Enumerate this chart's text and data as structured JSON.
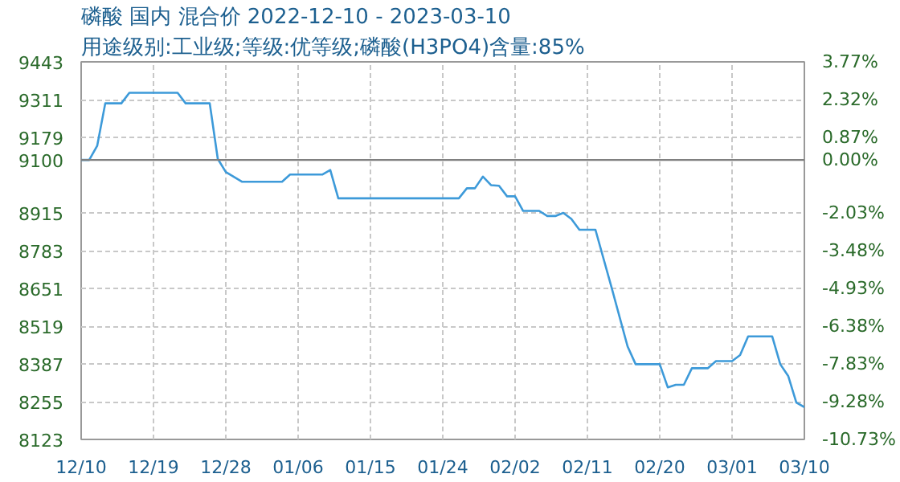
{
  "chart_data": {
    "type": "line",
    "title": "磷酸 国内 混合价 2022-12-10 - 2023-03-10",
    "subtitle": "用途级别:工业级;等级:优等级;磷酸(H3PO4)含量:85%",
    "x": [
      "2022-12-10",
      "2022-12-11",
      "2022-12-12",
      "2022-12-13",
      "2022-12-15",
      "2022-12-16",
      "2022-12-22",
      "2022-12-23",
      "2022-12-26",
      "2022-12-27",
      "2022-12-28",
      "2022-12-30",
      "2023-01-04",
      "2023-01-05",
      "2023-01-09",
      "2023-01-10",
      "2023-01-11",
      "2023-01-26",
      "2023-01-27",
      "2023-01-28",
      "2023-01-29",
      "2023-01-30",
      "2023-01-31",
      "2023-02-01",
      "2023-02-02",
      "2023-02-03",
      "2023-02-05",
      "2023-02-06",
      "2023-02-07",
      "2023-02-08",
      "2023-02-09",
      "2023-02-10",
      "2023-02-12",
      "2023-02-14",
      "2023-02-16",
      "2023-02-17",
      "2023-02-20",
      "2023-02-21",
      "2023-02-22",
      "2023-02-23",
      "2023-02-24",
      "2023-02-26",
      "2023-02-27",
      "2023-03-01",
      "2023-03-02",
      "2023-03-03",
      "2023-03-06",
      "2023-03-07",
      "2023-03-08",
      "2023-03-09",
      "2023-03-10"
    ],
    "series": [
      {
        "color": "#3d9ad9",
        "values": [
          9100,
          9100,
          9150,
          9298,
          9298,
          9335,
          9335,
          9298,
          9298,
          9104,
          9058,
          9024,
          9024,
          9049,
          9049,
          9065,
          8966,
          8966,
          9001,
          9001,
          9042,
          9012,
          9010,
          8973,
          8973,
          8922,
          8922,
          8904,
          8904,
          8915,
          8894,
          8856,
          8856,
          8655,
          8448,
          8386,
          8386,
          8305,
          8314,
          8314,
          8372,
          8372,
          8397,
          8397,
          8418,
          8483,
          8483,
          8386,
          8344,
          8252,
          8236
        ]
      }
    ],
    "xlim": [
      "2022-12-10",
      "2023-03-10"
    ],
    "xticks": [
      {
        "value": "2022-12-10",
        "label": "12/10"
      },
      {
        "value": "2022-12-19",
        "label": "12/19"
      },
      {
        "value": "2022-12-28",
        "label": "12/28"
      },
      {
        "value": "2023-01-06",
        "label": "01/06"
      },
      {
        "value": "2023-01-15",
        "label": "01/15"
      },
      {
        "value": "2023-01-24",
        "label": "01/24"
      },
      {
        "value": "2023-02-02",
        "label": "02/02"
      },
      {
        "value": "2023-02-11",
        "label": "02/11"
      },
      {
        "value": "2023-02-20",
        "label": "02/20"
      },
      {
        "value": "2023-03-01",
        "label": "03/01"
      },
      {
        "value": "2023-03-10",
        "label": "03/10"
      }
    ],
    "ylim": [
      8123,
      9443
    ],
    "yticks": [
      8123,
      8255,
      8387,
      8519,
      8651,
      8783,
      8915,
      9100,
      9179,
      9311,
      9443
    ],
    "y2lim": [
      -10.73,
      3.77
    ],
    "y2ticks": [
      {
        "value": -10.73,
        "label": "-10.73%"
      },
      {
        "value": -9.28,
        "label": "-9.28%"
      },
      {
        "value": -7.83,
        "label": "-7.83%"
      },
      {
        "value": -6.38,
        "label": "-6.38%"
      },
      {
        "value": -4.93,
        "label": "-4.93%"
      },
      {
        "value": -3.48,
        "label": "-3.48%"
      },
      {
        "value": -2.03,
        "label": "-2.03%"
      },
      {
        "value": 0,
        "label": "0.00%"
      },
      {
        "value": 0.87,
        "label": "0.87%"
      },
      {
        "value": 2.32,
        "label": "2.32%"
      },
      {
        "value": 3.77,
        "label": "3.77%"
      }
    ],
    "ref_lines": [
      {
        "axis": "y",
        "value": 9100,
        "color": "#808080",
        "line_style": "solid"
      }
    ],
    "grid": true,
    "marker": "none",
    "line_style": "solid"
  }
}
